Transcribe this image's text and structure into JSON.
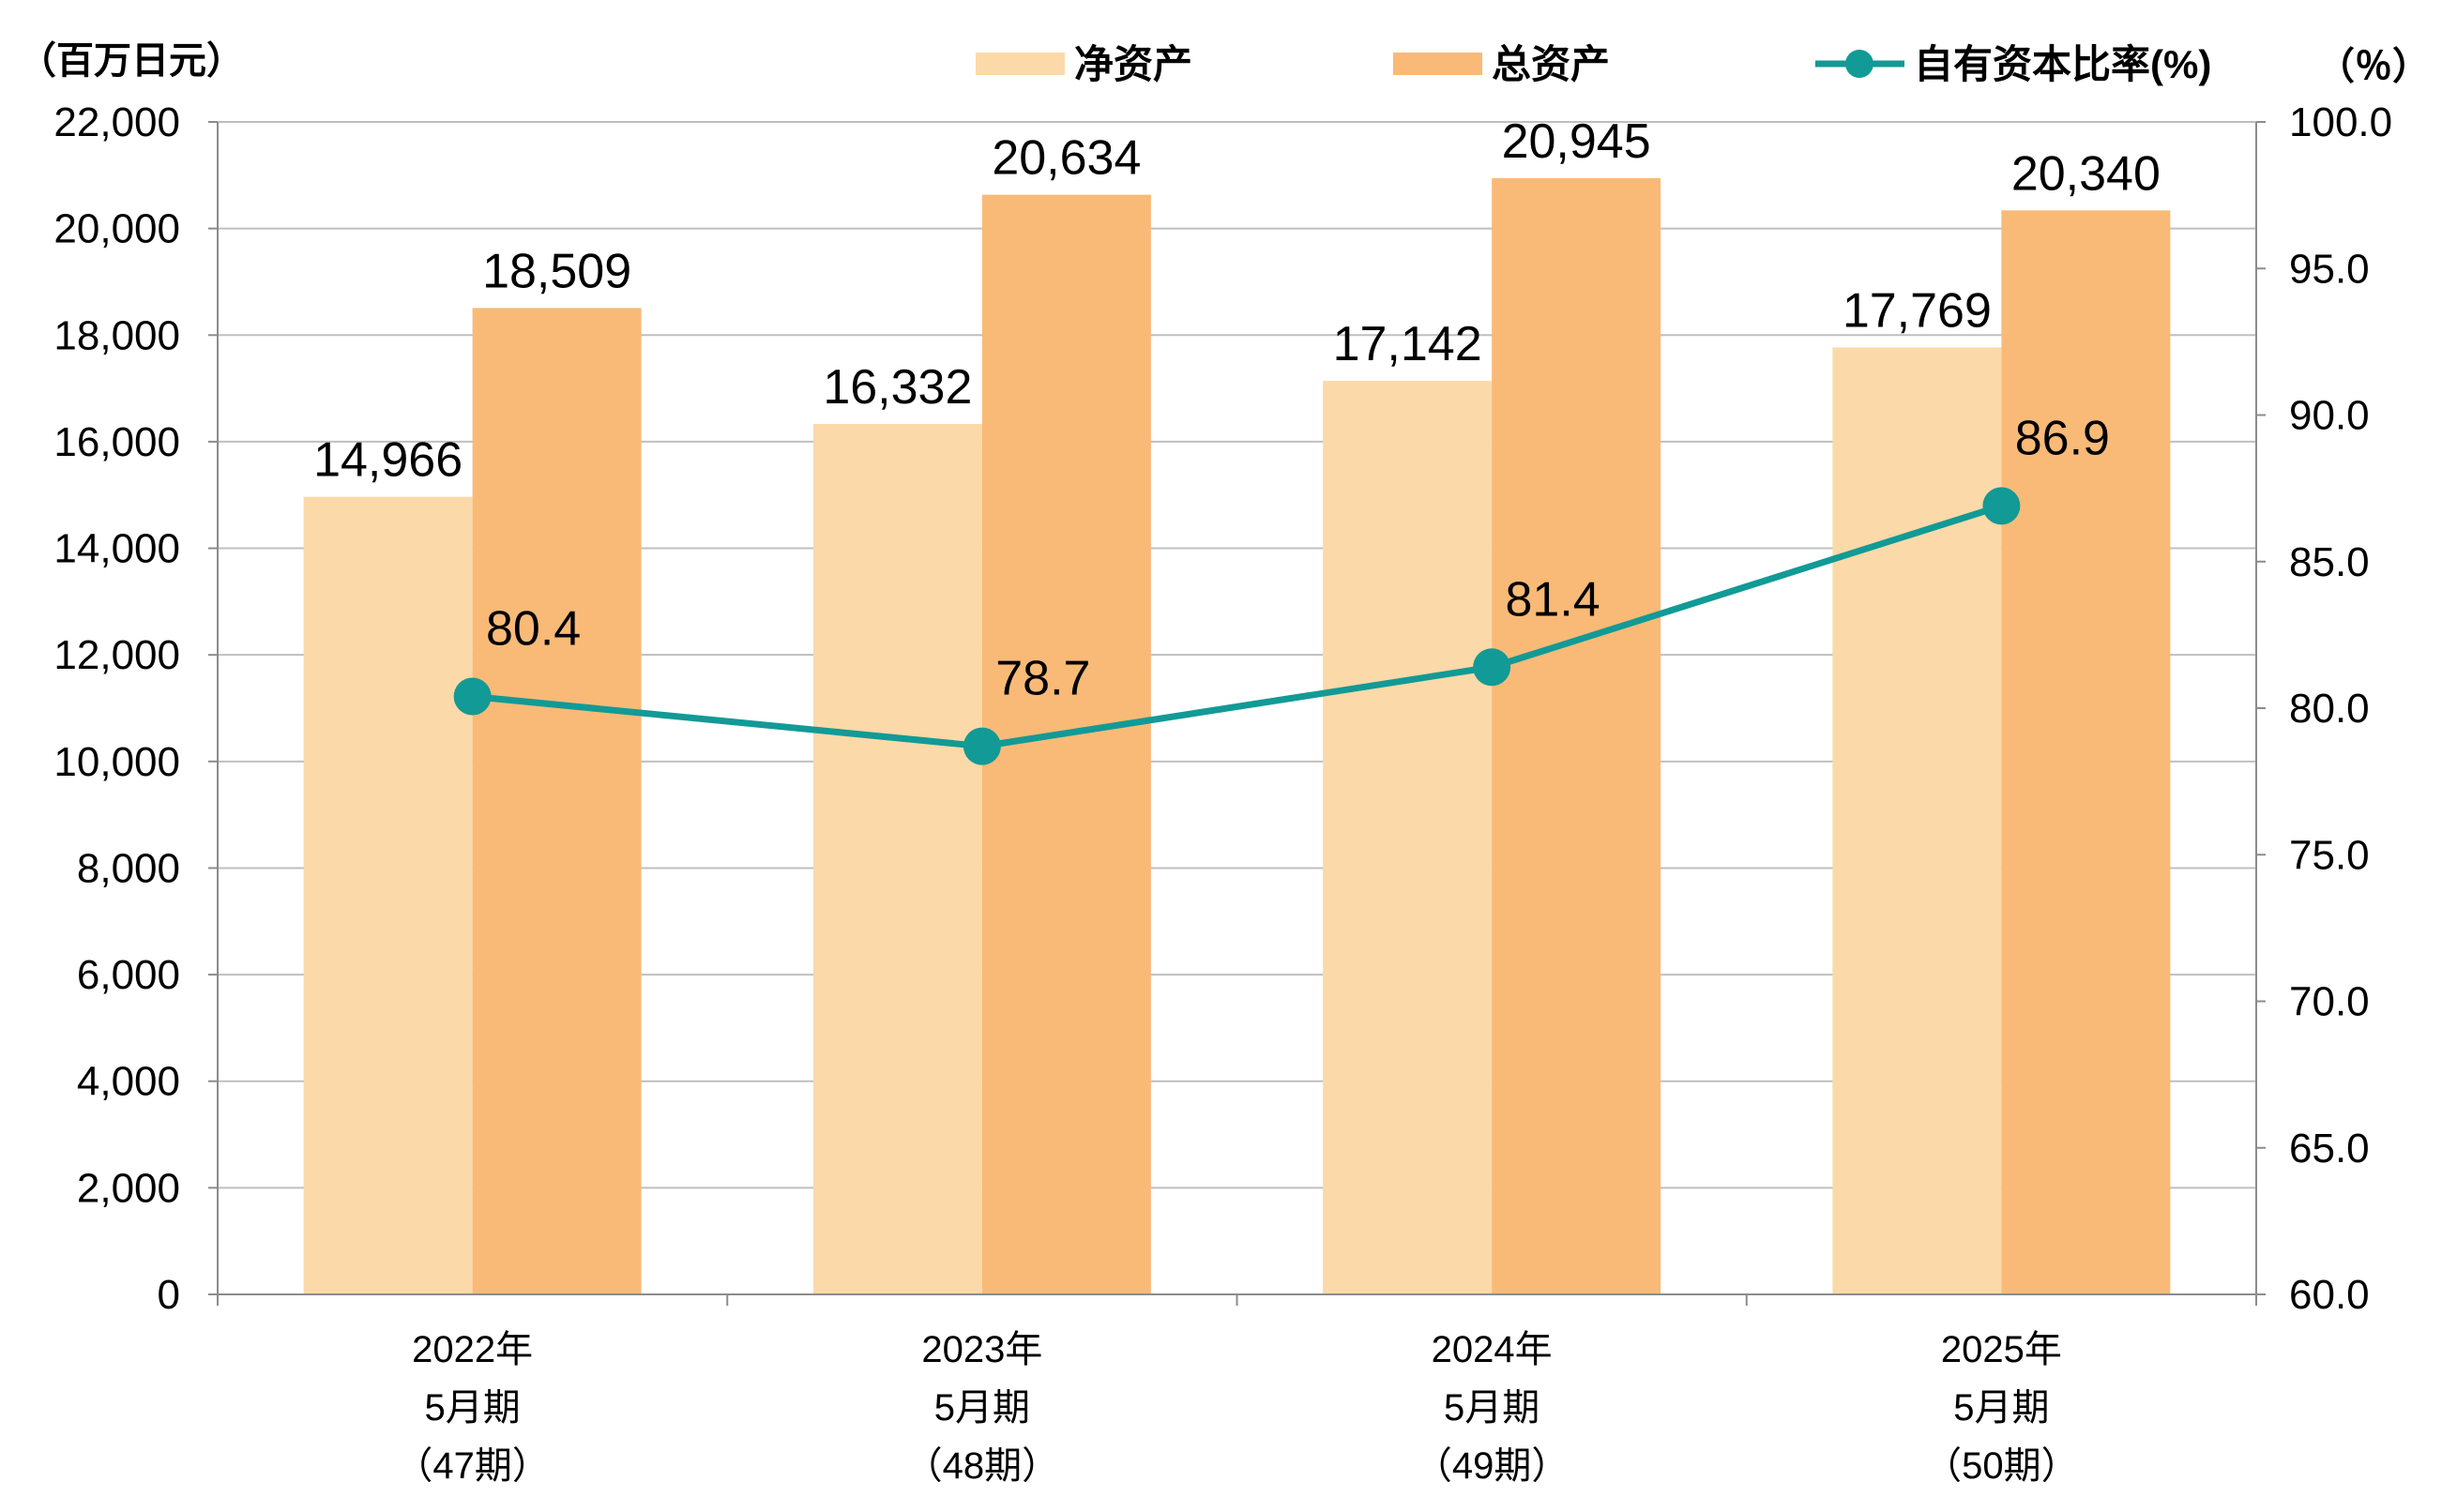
{
  "chart_data": {
    "type": "bar",
    "left_axis_unit": "（百万日元）",
    "right_axis_unit": "（％）",
    "categories": [
      [
        "2022年",
        "5月期",
        "（47期）"
      ],
      [
        "2023年",
        "5月期",
        "（48期）"
      ],
      [
        "2024年",
        "5月期",
        "（49期）"
      ],
      [
        "2025年",
        "5月期",
        "（50期）"
      ]
    ],
    "series": [
      {
        "name": "净资产",
        "type": "bar",
        "axis": "left",
        "color": "#FCD9A8",
        "values": [
          14966,
          16332,
          17142,
          17769
        ],
        "labels": [
          "14,966",
          "16,332",
          "17,142",
          "17,769"
        ]
      },
      {
        "name": "总资产",
        "type": "bar",
        "axis": "left",
        "color": "#F9BA77",
        "values": [
          18509,
          20634,
          20945,
          20340
        ],
        "labels": [
          "18,509",
          "20,634",
          "20,945",
          "20,340"
        ]
      },
      {
        "name": "自有资本比率(%)",
        "type": "line",
        "axis": "right",
        "color": "#129A96",
        "values": [
          80.4,
          78.7,
          81.4,
          86.9
        ],
        "labels": [
          "80.4",
          "78.7",
          "81.4",
          "86.9"
        ]
      }
    ],
    "y_left": {
      "min": 0,
      "max": 22000,
      "step": 2000,
      "tick_labels": [
        "0",
        "2,000",
        "4,000",
        "6,000",
        "8,000",
        "10,000",
        "12,000",
        "14,000",
        "16,000",
        "18,000",
        "20,000",
        "22,000"
      ]
    },
    "y_right": {
      "min": 60,
      "max": 100,
      "step": 5,
      "tick_labels": [
        "60.0",
        "65.0",
        "70.0",
        "75.0",
        "80.0",
        "85.0",
        "90.0",
        "95.0",
        "100.0"
      ]
    },
    "grid": true,
    "legend_position": "top"
  }
}
